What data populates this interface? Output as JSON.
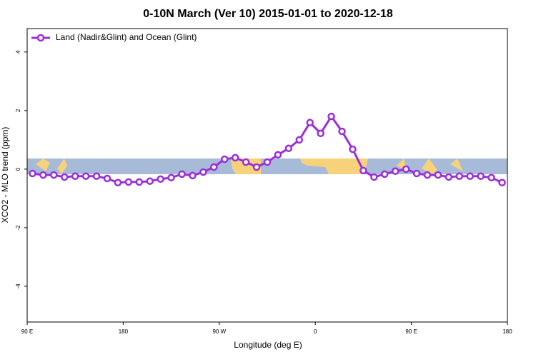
{
  "chart_data": {
    "type": "line",
    "title": "0-10N March (Ver 10)   2015-01-01 to 2020-12-18",
    "x_label": "Longitude (deg E)",
    "y_label": "XCO2 - MLO trend (ppm)",
    "x": [
      95,
      105,
      115,
      125,
      135,
      145,
      155,
      165,
      175,
      185,
      195,
      205,
      215,
      225,
      235,
      245,
      255,
      265,
      275,
      285,
      295,
      305,
      315,
      325,
      335,
      345,
      355,
      365,
      375,
      385,
      395,
      405,
      415,
      425,
      435,
      445,
      455,
      465,
      475,
      485,
      495,
      505,
      515,
      525,
      535
    ],
    "series": [
      {
        "name": "Land (Nadir&Glint) and Ocean (Glint)",
        "color": "#9a2fd8",
        "values": [
          -0.15,
          -0.2,
          -0.2,
          -0.27,
          -0.24,
          -0.24,
          -0.24,
          -0.32,
          -0.46,
          -0.44,
          -0.44,
          -0.41,
          -0.34,
          -0.29,
          -0.17,
          -0.22,
          -0.1,
          0.07,
          0.34,
          0.39,
          0.24,
          0.07,
          0.24,
          0.49,
          0.71,
          1.0,
          1.59,
          1.22,
          1.8,
          1.29,
          0.68,
          -0.05,
          -0.27,
          -0.17,
          -0.07,
          0.0,
          -0.15,
          -0.2,
          -0.2,
          -0.27,
          -0.24,
          -0.24,
          -0.24,
          -0.29,
          -0.46
        ]
      }
    ],
    "xlim": [
      90,
      540
    ],
    "xticks": [
      {
        "value": 90,
        "label": "90 E"
      },
      180,
      {
        "value": 270,
        "label": "90 W"
      },
      {
        "value": 360,
        "label": "0"
      },
      {
        "value": 450,
        "label": "90 E"
      },
      {
        "value": 540,
        "label": "180"
      }
    ],
    "ylim": [
      -5.22,
      4.8
    ],
    "yticks": [
      -4,
      -2,
      0,
      2,
      4
    ],
    "legend": "top-left"
  }
}
